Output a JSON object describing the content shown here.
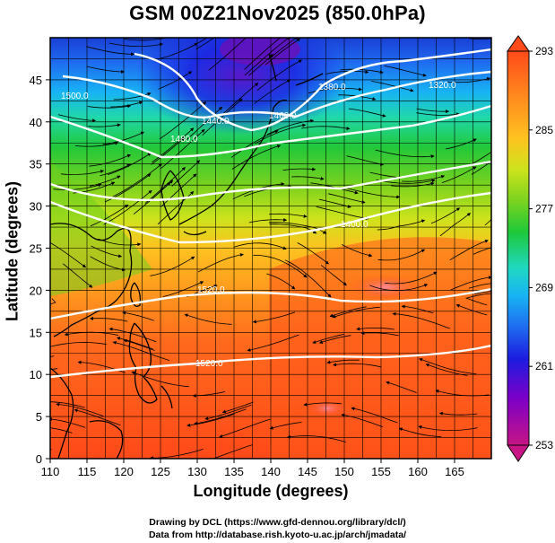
{
  "title": "GSM 00Z21Nov2025 (850.0hPa)",
  "axes": {
    "ylabel": "Latitude  (degrees)",
    "xlabel": "Longitude (degrees)",
    "x_ticks": [
      "110",
      "115",
      "120",
      "125",
      "130",
      "135",
      "140",
      "145",
      "150",
      "155",
      "160",
      "165"
    ],
    "y_ticks": [
      "0",
      "5",
      "10",
      "15",
      "20",
      "25",
      "30",
      "35",
      "40",
      "45"
    ],
    "x_range": [
      110,
      170
    ],
    "y_range": [
      0,
      50
    ]
  },
  "colorbar": {
    "labels": [
      "293",
      "285",
      "277",
      "269",
      "261",
      "253"
    ],
    "range": [
      253,
      293
    ],
    "colors": [
      "#c71585",
      "#7b00c8",
      "#1c1ce0",
      "#1f6cf0",
      "#18b4f4",
      "#1fd8c0",
      "#1ec83a",
      "#7ad21e",
      "#cde31c",
      "#ffc220",
      "#ff8c1e",
      "#ff4a1a"
    ]
  },
  "contours": [
    {
      "label": "1320.0"
    },
    {
      "label": "1380.0"
    },
    {
      "label": "1400.0"
    },
    {
      "label": "1440.0"
    },
    {
      "label": "1460.0"
    },
    {
      "label": "1480.0"
    },
    {
      "label": "1500.0"
    },
    {
      "label": "1520.0"
    }
  ],
  "credits": {
    "drawing": "Drawing by DCL (https://www.gfd-dennou.org/library/dcl/)",
    "data": "Data from http://database.rish.kyoto-u.ac.jp/arch/jmadata/"
  }
}
